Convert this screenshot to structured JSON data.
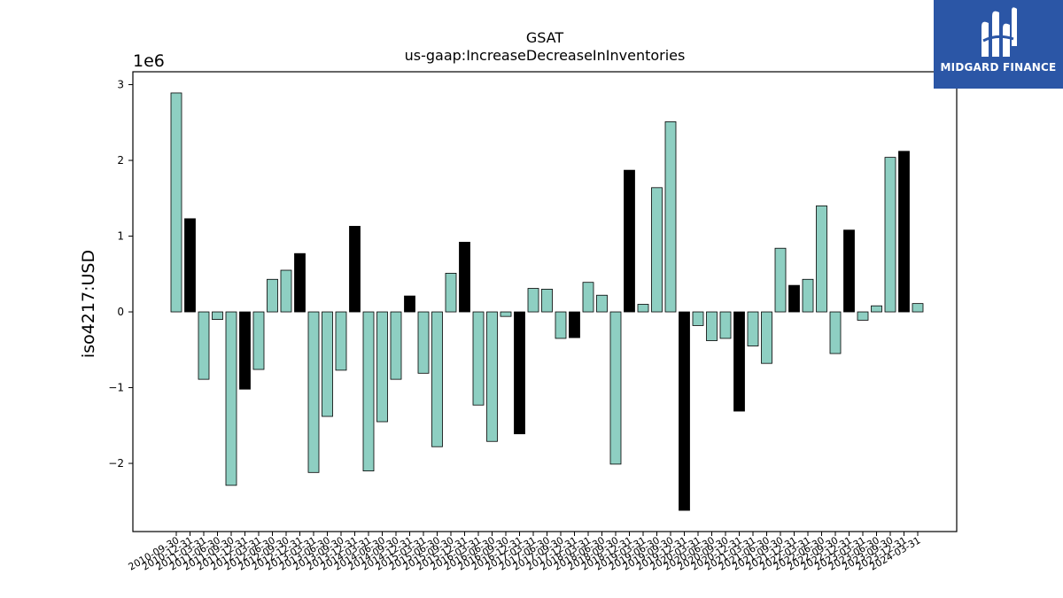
{
  "brand": {
    "name": "MIDGARD FINANCE",
    "bg_color": "#2b56a6"
  },
  "chart_data": {
    "type": "bar",
    "title": "GSAT",
    "subtitle": "us-gaap:IncreaseDecreaseInInventories",
    "ylabel": "iso4217:USD",
    "y_multiplier_label": "1e6",
    "ylim": [
      -2.9,
      3.17
    ],
    "yticks": [
      -2,
      -1,
      0,
      1,
      2,
      3
    ],
    "ytick_labels": [
      "−2",
      "−1",
      "0",
      "1",
      "2",
      "3"
    ],
    "colors": {
      "quarterly": "#8ecfc2",
      "annual": "#000000",
      "edge": "#000000"
    },
    "categories": [
      "2010-09-30",
      "2010-12-31",
      "2011-03-31",
      "2011-06-30",
      "2011-09-30",
      "2011-12-31",
      "2012-03-31",
      "2012-06-30",
      "2012-09-30",
      "2012-12-31",
      "2013-03-31",
      "2013-06-30",
      "2013-09-30",
      "2013-12-31",
      "2014-03-31",
      "2014-06-30",
      "2014-09-30",
      "2014-12-31",
      "2015-03-31",
      "2015-06-30",
      "2015-09-30",
      "2015-12-31",
      "2016-03-31",
      "2016-06-30",
      "2016-09-30",
      "2016-12-31",
      "2017-03-31",
      "2017-06-30",
      "2017-09-30",
      "2017-12-31",
      "2018-03-31",
      "2018-06-30",
      "2018-09-30",
      "2018-12-31",
      "2019-03-31",
      "2019-06-30",
      "2019-09-30",
      "2019-12-31",
      "2020-03-31",
      "2020-06-30",
      "2020-09-30",
      "2020-12-31",
      "2021-03-31",
      "2021-06-30",
      "2021-09-30",
      "2021-12-31",
      "2022-03-31",
      "2022-06-30",
      "2022-09-30",
      "2022-12-31",
      "2023-03-31",
      "2023-06-30",
      "2023-09-30",
      "2023-12-31",
      "2024-03-31"
    ],
    "values": [
      2.89,
      1.23,
      -0.89,
      -0.1,
      -2.29,
      -1.02,
      -0.76,
      0.43,
      0.55,
      0.77,
      -2.12,
      -1.38,
      -0.77,
      1.13,
      -2.1,
      -1.45,
      -0.89,
      0.21,
      -0.81,
      -1.78,
      0.51,
      0.92,
      -1.23,
      -1.71,
      -0.06,
      -1.61,
      0.31,
      0.3,
      -0.35,
      -0.34,
      0.39,
      0.22,
      -2.01,
      1.87,
      0.1,
      1.64,
      2.51,
      -2.62,
      -0.18,
      -0.38,
      -0.35,
      -1.31,
      -0.45,
      -0.68,
      0.84,
      0.35,
      0.43,
      1.4,
      -0.55,
      1.08,
      -0.11,
      0.08,
      2.04,
      2.12,
      0.11
    ],
    "annual": [
      false,
      true,
      false,
      false,
      false,
      true,
      false,
      false,
      false,
      true,
      false,
      false,
      false,
      true,
      false,
      false,
      false,
      true,
      false,
      false,
      false,
      true,
      false,
      false,
      false,
      true,
      false,
      false,
      false,
      true,
      false,
      false,
      false,
      true,
      false,
      false,
      false,
      true,
      false,
      false,
      false,
      true,
      false,
      false,
      false,
      true,
      false,
      false,
      false,
      true,
      false,
      false,
      false,
      true,
      false
    ]
  }
}
